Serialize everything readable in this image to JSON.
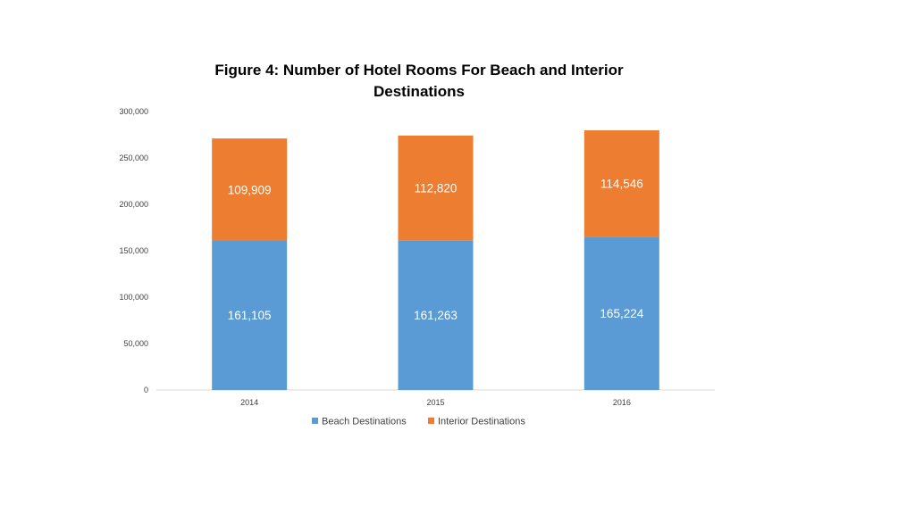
{
  "chart_data": {
    "type": "bar",
    "stacked": true,
    "title": "Figure 4: Number of Hotel Rooms For Beach and Interior Destinations",
    "title_lines": [
      "Figure 4: Number of Hotel Rooms For Beach and Interior",
      "Destinations"
    ],
    "categories": [
      "2014",
      "2015",
      "2016"
    ],
    "series": [
      {
        "name": "Beach Destinations",
        "color": "#5b9bd5",
        "values": [
          161105,
          161263,
          165224
        ],
        "labels": [
          "161,105",
          "161,263",
          "165,224"
        ]
      },
      {
        "name": "Interior Destinations",
        "color": "#ed7d31",
        "values": [
          109909,
          112820,
          114546
        ],
        "labels": [
          "109,909",
          "112,820",
          "114,546"
        ]
      }
    ],
    "ylim": [
      0,
      300000
    ],
    "yticks": [
      0,
      50000,
      100000,
      150000,
      200000,
      250000,
      300000
    ],
    "ytick_labels": [
      "0",
      "50,000",
      "100,000",
      "150,000",
      "200,000",
      "250,000",
      "300,000"
    ],
    "xlabel": "",
    "ylabel": "",
    "legend_position": "bottom",
    "grid": false
  }
}
